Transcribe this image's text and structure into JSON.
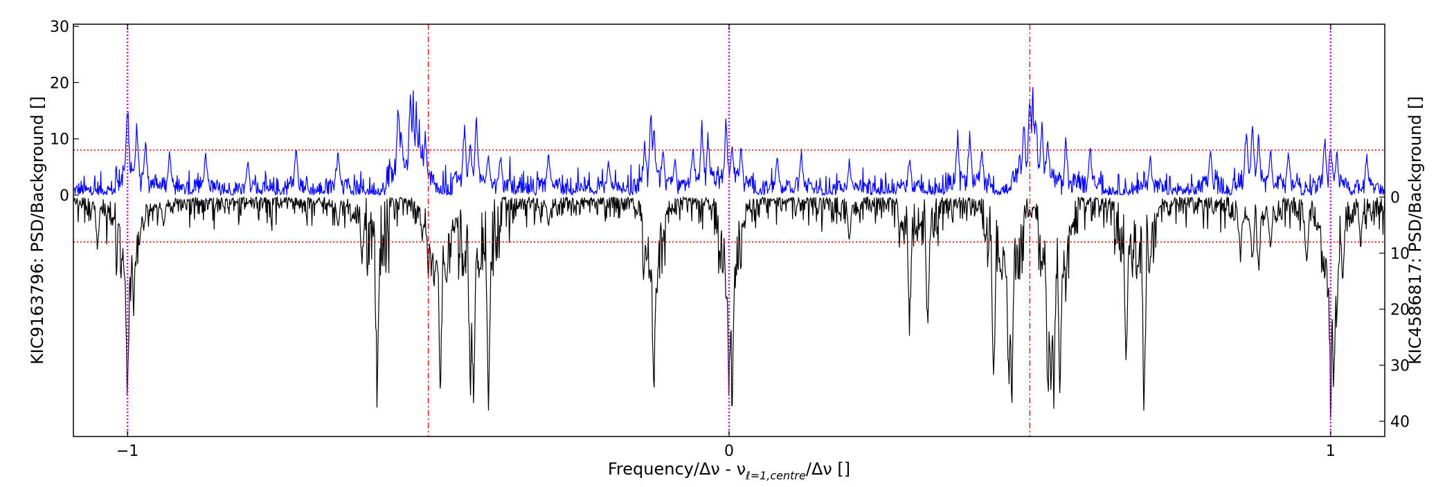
{
  "chart_data": {
    "type": "line",
    "title": "",
    "xlabel": "Frequency/Δν - ν",
    "xlabel_sub": "ℓ=1,centre",
    "xlabel_tail": "/Δν []",
    "ylabel_left": "KIC9163796: PSD/Background []",
    "ylabel_right": "KIC4586817: PSD/Background []",
    "xlim": [
      -1.09,
      1.09
    ],
    "ylim_top": [
      -1.5,
      30.5
    ],
    "ylim_bottom": [
      -1,
      42.5
    ],
    "x_ticks": [
      -1,
      0,
      1
    ],
    "x_tick_labels": [
      "−1",
      "0",
      "1"
    ],
    "y_ticks_left": [
      0,
      10,
      20,
      30
    ],
    "y_tick_labels_left": [
      "0",
      "10",
      "20",
      "30"
    ],
    "y_ticks_right": [
      0,
      10,
      20,
      30,
      40
    ],
    "y_tick_labels_right": [
      "0",
      "10",
      "20",
      "30",
      "40"
    ],
    "threshold_top": 8,
    "threshold_bottom": 8,
    "red_dashdot_x": [
      -0.5,
      0.5
    ],
    "magenta_dotted_x": [
      -1,
      0,
      1
    ],
    "series": [
      {
        "color": "#0000ff",
        "panel": "top",
        "baseline": 1.2,
        "peaks": [
          {
            "x": -1.0,
            "y": 18.5
          },
          {
            "x": -0.985,
            "y": 14.5
          },
          {
            "x": -0.97,
            "y": 11
          },
          {
            "x": -0.93,
            "y": 9
          },
          {
            "x": -0.87,
            "y": 8.5
          },
          {
            "x": -0.8,
            "y": 7
          },
          {
            "x": -0.72,
            "y": 10
          },
          {
            "x": -0.65,
            "y": 9
          },
          {
            "x": -0.55,
            "y": 18.5
          },
          {
            "x": -0.545,
            "y": 14
          },
          {
            "x": -0.51,
            "y": 10
          },
          {
            "x": -0.53,
            "y": 20
          },
          {
            "x": -0.525,
            "y": 19
          },
          {
            "x": -0.52,
            "y": 17
          },
          {
            "x": -0.515,
            "y": 14
          },
          {
            "x": -0.505,
            "y": 12
          },
          {
            "x": -0.44,
            "y": 14
          },
          {
            "x": -0.43,
            "y": 11
          },
          {
            "x": -0.42,
            "y": 15
          },
          {
            "x": -0.4,
            "y": 8.5
          },
          {
            "x": -0.38,
            "y": 8
          },
          {
            "x": -0.3,
            "y": 9
          },
          {
            "x": -0.2,
            "y": 7
          },
          {
            "x": -0.14,
            "y": 11
          },
          {
            "x": -0.13,
            "y": 16
          },
          {
            "x": -0.125,
            "y": 14
          },
          {
            "x": -0.11,
            "y": 10
          },
          {
            "x": -0.09,
            "y": 8
          },
          {
            "x": -0.06,
            "y": 10
          },
          {
            "x": -0.045,
            "y": 14.5
          },
          {
            "x": -0.035,
            "y": 12
          },
          {
            "x": -0.005,
            "y": 15
          },
          {
            "x": 0.005,
            "y": 11
          },
          {
            "x": 0.02,
            "y": 10
          },
          {
            "x": 0.08,
            "y": 8
          },
          {
            "x": 0.12,
            "y": 9
          },
          {
            "x": 0.2,
            "y": 7
          },
          {
            "x": 0.3,
            "y": 8
          },
          {
            "x": 0.38,
            "y": 12
          },
          {
            "x": 0.4,
            "y": 13
          },
          {
            "x": 0.42,
            "y": 10
          },
          {
            "x": 0.49,
            "y": 15
          },
          {
            "x": 0.5,
            "y": 21
          },
          {
            "x": 0.505,
            "y": 20
          },
          {
            "x": 0.51,
            "y": 17
          },
          {
            "x": 0.52,
            "y": 14
          },
          {
            "x": 0.53,
            "y": 12
          },
          {
            "x": 0.56,
            "y": 11
          },
          {
            "x": 0.6,
            "y": 10
          },
          {
            "x": 0.7,
            "y": 8
          },
          {
            "x": 0.8,
            "y": 10
          },
          {
            "x": 0.86,
            "y": 14
          },
          {
            "x": 0.87,
            "y": 13.5
          },
          {
            "x": 0.88,
            "y": 12
          },
          {
            "x": 0.9,
            "y": 10
          },
          {
            "x": 0.93,
            "y": 9
          },
          {
            "x": 0.99,
            "y": 12
          },
          {
            "x": 1.0,
            "y": 11
          },
          {
            "x": 1.01,
            "y": 9
          },
          {
            "x": 1.06,
            "y": 8
          }
        ]
      },
      {
        "color": "#000000",
        "panel": "bottom",
        "baseline": 1.5,
        "peaks": [
          {
            "x": -1.05,
            "y": 10
          },
          {
            "x": -1.01,
            "y": 13
          },
          {
            "x": -1.005,
            "y": 18
          },
          {
            "x": -1.0,
            "y": 42.5
          },
          {
            "x": -0.995,
            "y": 20
          },
          {
            "x": -0.99,
            "y": 22
          },
          {
            "x": -0.98,
            "y": 10
          },
          {
            "x": -0.94,
            "y": 6
          },
          {
            "x": -0.65,
            "y": 6
          },
          {
            "x": -0.61,
            "y": 13.5
          },
          {
            "x": -0.585,
            "y": 41
          },
          {
            "x": -0.51,
            "y": 8
          },
          {
            "x": -0.5,
            "y": 15
          },
          {
            "x": -0.495,
            "y": 16
          },
          {
            "x": -0.49,
            "y": 19
          },
          {
            "x": -0.485,
            "y": 15
          },
          {
            "x": -0.48,
            "y": 41
          },
          {
            "x": -0.47,
            "y": 20
          },
          {
            "x": -0.43,
            "y": 42.5
          },
          {
            "x": -0.425,
            "y": 42.5
          },
          {
            "x": -0.4,
            "y": 42.5
          },
          {
            "x": -0.3,
            "y": 6
          },
          {
            "x": -0.14,
            "y": 12
          },
          {
            "x": -0.13,
            "y": 18
          },
          {
            "x": -0.125,
            "y": 42.5
          },
          {
            "x": -0.12,
            "y": 20
          },
          {
            "x": -0.11,
            "y": 10
          },
          {
            "x": -0.01,
            "y": 12
          },
          {
            "x": -0.005,
            "y": 20
          },
          {
            "x": 0.0,
            "y": 42.5
          },
          {
            "x": 0.005,
            "y": 42.5
          },
          {
            "x": 0.01,
            "y": 18
          },
          {
            "x": 0.02,
            "y": 8
          },
          {
            "x": 0.2,
            "y": 9
          },
          {
            "x": 0.3,
            "y": 27
          },
          {
            "x": 0.33,
            "y": 26
          },
          {
            "x": 0.44,
            "y": 39
          },
          {
            "x": 0.45,
            "y": 12
          },
          {
            "x": 0.46,
            "y": 18
          },
          {
            "x": 0.465,
            "y": 42.5
          },
          {
            "x": 0.47,
            "y": 42.5
          },
          {
            "x": 0.48,
            "y": 12
          },
          {
            "x": 0.52,
            "y": 12
          },
          {
            "x": 0.53,
            "y": 42.5
          },
          {
            "x": 0.535,
            "y": 42.5
          },
          {
            "x": 0.54,
            "y": 40
          },
          {
            "x": 0.55,
            "y": 42
          },
          {
            "x": 0.56,
            "y": 20
          },
          {
            "x": 0.66,
            "y": 36
          },
          {
            "x": 0.67,
            "y": 13
          },
          {
            "x": 0.68,
            "y": 14
          },
          {
            "x": 0.69,
            "y": 42.5
          },
          {
            "x": 0.7,
            "y": 10
          },
          {
            "x": 0.85,
            "y": 12
          },
          {
            "x": 0.87,
            "y": 14
          },
          {
            "x": 0.88,
            "y": 16
          },
          {
            "x": 0.9,
            "y": 12
          },
          {
            "x": 0.96,
            "y": 15
          },
          {
            "x": 0.99,
            "y": 15
          },
          {
            "x": 0.995,
            "y": 20
          },
          {
            "x": 1.0,
            "y": 42.5
          },
          {
            "x": 1.005,
            "y": 42.5
          },
          {
            "x": 1.01,
            "y": 25
          },
          {
            "x": 1.02,
            "y": 16
          },
          {
            "x": 1.05,
            "y": 10
          }
        ]
      }
    ],
    "grid": false,
    "legend": "none"
  }
}
